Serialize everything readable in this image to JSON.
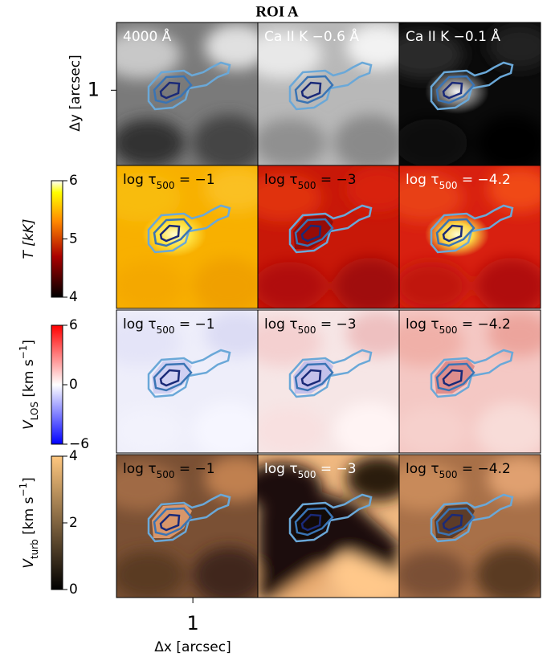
{
  "title": "ROI A",
  "x_label": "Δx [arcsec]",
  "y_label": "Δy [arcsec]",
  "x_axis": {
    "lim": [
      0,
      1.85
    ],
    "ticks": [
      1
    ]
  },
  "y_axis": {
    "lim": [
      0,
      1.9
    ],
    "ticks": [
      1
    ]
  },
  "rows": [
    {
      "panels": [
        {
          "label": [
            "4000 Å"
          ]
        },
        {
          "label": [
            "Ca II K −0.6 Å"
          ]
        },
        {
          "label": [
            "Ca II K −0.1 Å"
          ]
        }
      ]
    },
    {
      "panels": [
        {
          "label": [
            "log τ",
            "500",
            " = −1"
          ]
        },
        {
          "label": [
            "log τ",
            "500",
            " = −3"
          ]
        },
        {
          "label": [
            "log τ",
            "500",
            " = −4.2"
          ]
        }
      ]
    },
    {
      "panels": [
        {
          "label": [
            "log τ",
            "500",
            " = −1"
          ]
        },
        {
          "label": [
            "log τ",
            "500",
            " = −3"
          ]
        },
        {
          "label": [
            "log τ",
            "500",
            " = −4.2"
          ]
        }
      ]
    },
    {
      "panels": [
        {
          "label": [
            "log τ",
            "500",
            " = −1"
          ]
        },
        {
          "label": [
            "log τ",
            "500",
            " = −3"
          ]
        },
        {
          "label": [
            "log τ",
            "500",
            " = −4.2"
          ]
        }
      ]
    }
  ],
  "colorbars": [
    {
      "label": [
        "T [kK]"
      ],
      "lim": [
        4,
        6
      ],
      "ticks": [
        4,
        5,
        6
      ]
    },
    {
      "label": [
        "V",
        "LOS",
        " [km s",
        "−1",
        "]"
      ],
      "lim": [
        -6,
        6
      ],
      "ticks": [
        {
          "value": -6,
          "label": "−6"
        },
        0,
        6
      ]
    },
    {
      "label": [
        "V",
        "turb",
        " [km s",
        "−1",
        "]"
      ],
      "lim": [
        0,
        4
      ],
      "ticks": [
        0,
        2,
        4
      ]
    }
  ]
}
